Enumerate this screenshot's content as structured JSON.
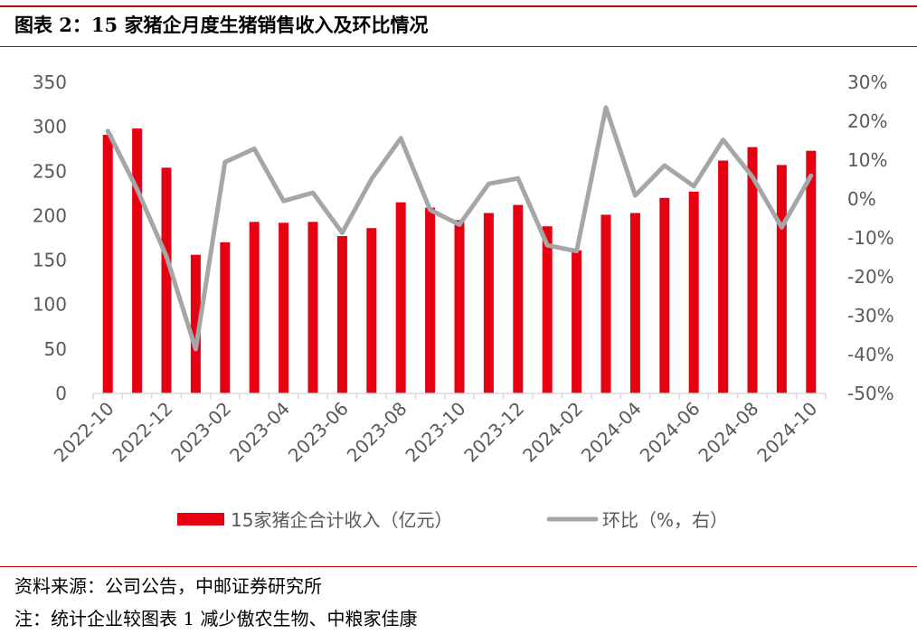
{
  "header": {
    "title": "图表 2：15 家猪企月度生猪销售收入及环比情况"
  },
  "footer": {
    "source": "资料来源：公司公告，中邮证券研究所",
    "note": "注：统计企业较图表 1 减少傲农生物、中粮家佳康"
  },
  "colors": {
    "bar": "#e60012",
    "line": "#a6a6a6",
    "accent_rule": "#c00000",
    "axis": "#d9d9d9",
    "tick_text": "#595959"
  },
  "chart_data": {
    "type": "bar",
    "title": "",
    "categories": [
      "2022-10",
      "2022-11",
      "2022-12",
      "2023-01",
      "2023-02",
      "2023-03",
      "2023-04",
      "2023-05",
      "2023-06",
      "2023-07",
      "2023-08",
      "2023-09",
      "2023-10",
      "2023-11",
      "2023-12",
      "2024-01",
      "2024-02",
      "2024-03",
      "2024-04",
      "2024-05",
      "2024-06",
      "2024-07",
      "2024-08",
      "2024-09",
      "2024-10"
    ],
    "x_tick_labels": [
      "2022-10",
      "2022-12",
      "2023-02",
      "2023-04",
      "2023-06",
      "2023-08",
      "2023-10",
      "2023-12",
      "2024-02",
      "2024-04",
      "2024-06",
      "2024-08",
      "2024-10"
    ],
    "series": [
      {
        "name": "15家猪企合计收入（亿元）",
        "type": "bar",
        "axis": "left",
        "values": [
          291,
          298,
          254,
          156,
          170,
          193,
          192,
          193,
          177,
          186,
          215,
          209,
          195,
          203,
          212,
          188,
          161,
          201,
          203,
          220,
          227,
          262,
          277,
          257,
          273
        ]
      },
      {
        "name": "环比（%，右）",
        "type": "line",
        "axis": "right",
        "values": [
          17.5,
          2.5,
          -14.7,
          -38.6,
          9.5,
          12.9,
          -0.5,
          1.6,
          -8.7,
          5.1,
          15.6,
          -2.8,
          -6.6,
          3.9,
          5.3,
          -11.9,
          -13.4,
          23.5,
          0.9,
          8.6,
          3.3,
          15.2,
          5.7,
          -7.3,
          6.0
        ]
      }
    ],
    "ylim_left": [
      0,
      350
    ],
    "yticks_left": [
      "0",
      "50",
      "100",
      "150",
      "200",
      "250",
      "300",
      "350"
    ],
    "ylim_right": [
      -50,
      30
    ],
    "yticks_right": [
      "-50%",
      "-40%",
      "-30%",
      "-20%",
      "-10%",
      "0%",
      "10%",
      "20%",
      "30%"
    ],
    "xlabel": "",
    "ylabel": "",
    "grid": false,
    "legend_position": "bottom"
  }
}
